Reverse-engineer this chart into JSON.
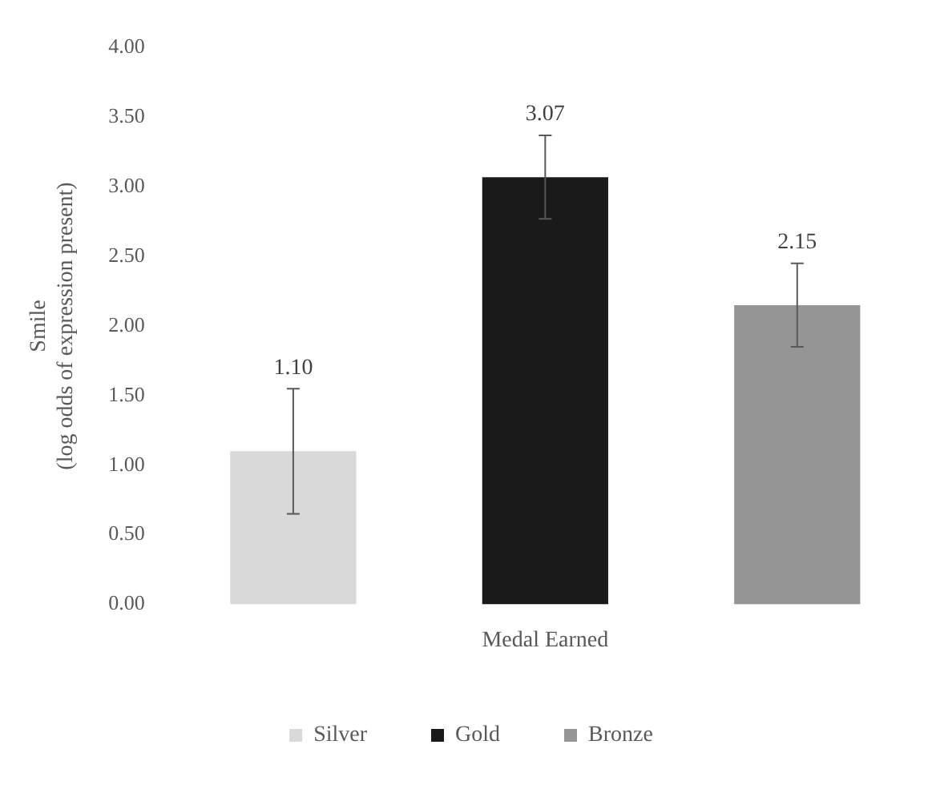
{
  "chart_data": {
    "type": "bar",
    "xlabel": "Medal Earned",
    "ylabel": "Smile\n(log odds of expression present)",
    "categories": [
      null,
      null,
      null
    ],
    "stacked": true,
    "series": [
      {
        "name": "Silver",
        "color": "#d9d9d9",
        "values": [
          1.1,
          null,
          null
        ],
        "errors": [
          0.45,
          null,
          null
        ],
        "value_labels": [
          "1.10",
          null,
          null
        ]
      },
      {
        "name": "Gold",
        "color": "#1a1a1a",
        "values": [
          null,
          3.07,
          null
        ],
        "errors": [
          null,
          0.3,
          null
        ],
        "value_labels": [
          null,
          "3.07",
          null
        ]
      },
      {
        "name": "Bronze",
        "color": "#959595",
        "values": [
          null,
          null,
          2.15
        ],
        "errors": [
          null,
          null,
          0.3
        ],
        "value_labels": [
          null,
          null,
          "2.15"
        ]
      }
    ],
    "ylim": [
      0,
      4
    ],
    "yticks": [
      {
        "value": 0,
        "label": "0.00"
      },
      {
        "value": 0.5,
        "label": "0.50"
      },
      {
        "value": 1,
        "label": "1.00"
      },
      {
        "value": 1.5,
        "label": "1.50"
      },
      {
        "value": 2,
        "label": "2.00"
      },
      {
        "value": 2.5,
        "label": "2.50"
      },
      {
        "value": 3,
        "label": "3.00"
      },
      {
        "value": 3.5,
        "label": "3.50"
      },
      {
        "value": 4,
        "label": "4.00"
      }
    ],
    "grid": false,
    "legend": "bottom"
  }
}
